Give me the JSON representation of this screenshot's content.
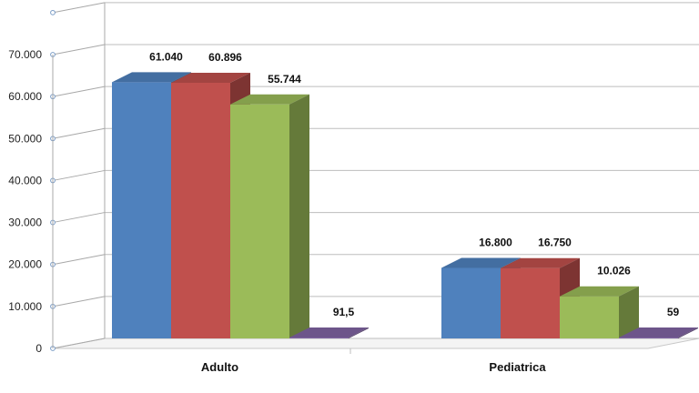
{
  "chart_data": {
    "type": "bar",
    "style": "3d-clustered-column",
    "categories": [
      "Adulto",
      "Pediatrica"
    ],
    "series": [
      {
        "values": [
          61040,
          16800
        ],
        "labels": [
          "61.040",
          "16.800"
        ],
        "color": "#4F81BD"
      },
      {
        "values": [
          60896,
          16750
        ],
        "labels": [
          "60.896",
          "16.750"
        ],
        "color": "#C0504D"
      },
      {
        "values": [
          55744,
          10026
        ],
        "labels": [
          "55.744",
          "10.026"
        ],
        "color": "#9BBB59"
      },
      {
        "values": [
          91.5,
          59
        ],
        "labels": [
          "91,5",
          "59"
        ],
        "color": "#8064A2"
      }
    ],
    "ylim": [
      0,
      70000
    ],
    "yticks": [
      0,
      10000,
      20000,
      30000,
      40000,
      50000,
      60000,
      70000
    ],
    "ytick_labels": [
      "0",
      "10.000",
      "20.000",
      "30.000",
      "40.000",
      "50.000",
      "60.000",
      "70.000"
    ],
    "title": "",
    "xlabel": "",
    "ylabel": "",
    "grid": true,
    "legend": "none"
  }
}
